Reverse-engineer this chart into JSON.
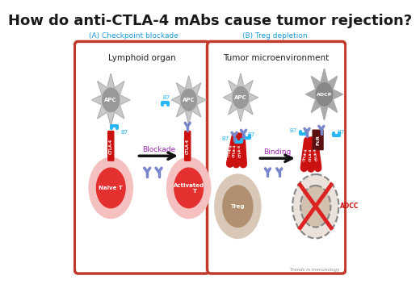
{
  "title": "How do anti-CTLA-4 mAbs cause tumor rejection?",
  "title_color": "#1a1a1a",
  "title_fontsize": 13,
  "subtitle_A": "(A) Checkpoint blockade",
  "subtitle_B": "(B) Treg depletion",
  "subtitle_color": "#1a9cd8",
  "label_A": "Lymphoid organ",
  "label_B": "Tumor microenvironment",
  "label_color": "#222222",
  "box_color": "#c0392b",
  "cell_outer_color": "#f5c0c0",
  "cell_inner_color": "#e53030",
  "apc_body_color": "#c8c8c8",
  "apc_center_color": "#999999",
  "blue_color": "#29b6f6",
  "ctla4_color": "#cc1111",
  "antibody_color": "#7986cb",
  "arrow_color": "#111111",
  "blockade_color": "#9c27b0",
  "binding_color": "#9c27b0",
  "treg_outer_color": "#d9c8b8",
  "treg_inner_color": "#b09070",
  "fcr_color": "#5a1010",
  "adcc_color": "#cc1111",
  "x_color": "#dd2222",
  "background": "#ffffff",
  "watermark": "Trends in Immunology"
}
